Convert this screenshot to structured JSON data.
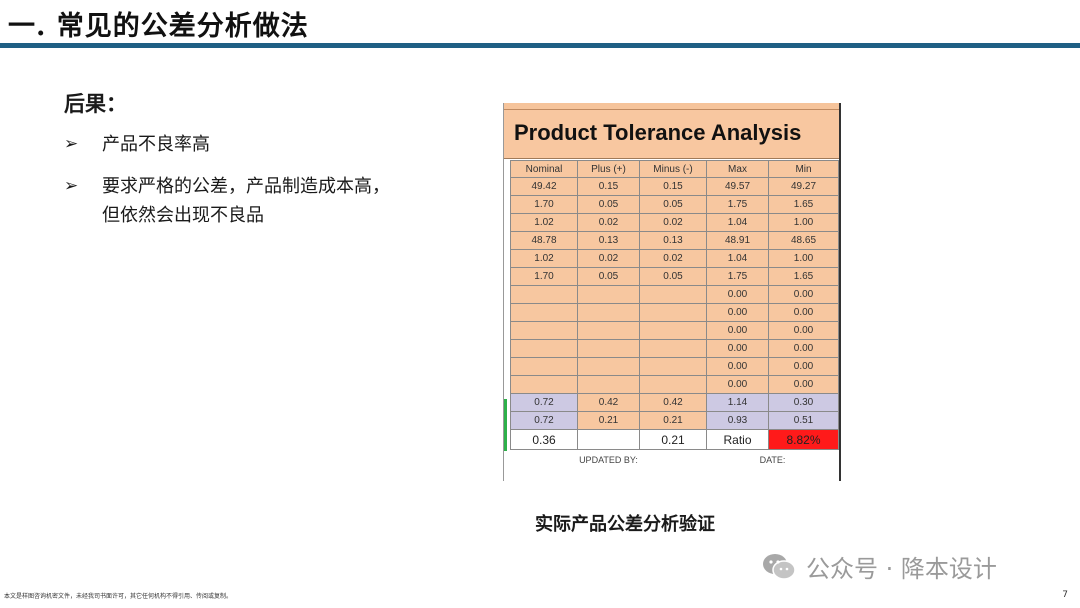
{
  "slide": {
    "title": "一. 常见的公差分析做法",
    "section_heading": "后果：",
    "bullets": [
      "产品不良率高",
      "要求严格的公差，产品制造成本高，但依然会出现不良品"
    ],
    "bullet_marker": "➢",
    "caption": "实际产品公差分析验证",
    "watermark": "公众号 · 降本设计",
    "disclaimer": "本文是样图咨询机密文件，未经我司书面许可，其它任何机构不得引用、传阅或复制。",
    "page_number": "7"
  },
  "sheet": {
    "title": "Product Tolerance Analysis",
    "title_stub": "s",
    "columns": [
      "Nominal",
      "Plus (+)",
      "Minus (-)",
      "Max",
      "Min"
    ],
    "rows": [
      [
        "49.42",
        "0.15",
        "0.15",
        "49.57",
        "49.27"
      ],
      [
        "1.70",
        "0.05",
        "0.05",
        "1.75",
        "1.65"
      ],
      [
        "1.02",
        "0.02",
        "0.02",
        "1.04",
        "1.00"
      ],
      [
        "48.78",
        "0.13",
        "0.13",
        "48.91",
        "48.65"
      ],
      [
        "1.02",
        "0.02",
        "0.02",
        "1.04",
        "1.00"
      ],
      [
        "1.70",
        "0.05",
        "0.05",
        "1.75",
        "1.65"
      ],
      [
        "",
        "",
        "",
        "0.00",
        "0.00"
      ],
      [
        "",
        "",
        "",
        "0.00",
        "0.00"
      ],
      [
        "",
        "",
        "",
        "0.00",
        "0.00"
      ],
      [
        "",
        "",
        "",
        "0.00",
        "0.00"
      ],
      [
        "",
        "",
        "",
        "0.00",
        "0.00"
      ],
      [
        "",
        "",
        "",
        "0.00",
        "0.00"
      ]
    ],
    "summary_rows": [
      [
        "0.72",
        "0.42",
        "0.42",
        "1.14",
        "0.30"
      ],
      [
        "0.72",
        "0.21",
        "0.21",
        "0.93",
        "0.51"
      ]
    ],
    "result_row": [
      "0.36",
      "",
      "0.21",
      "Ratio",
      "8.82%"
    ],
    "footer": {
      "updated_by": "UPDATED BY:",
      "date": "DATE:"
    },
    "colors": {
      "peach": "#f7c7a0",
      "lavender": "#cdc9e3",
      "alert": "#ff1a1a",
      "title_rule": "#1f5f84"
    }
  }
}
